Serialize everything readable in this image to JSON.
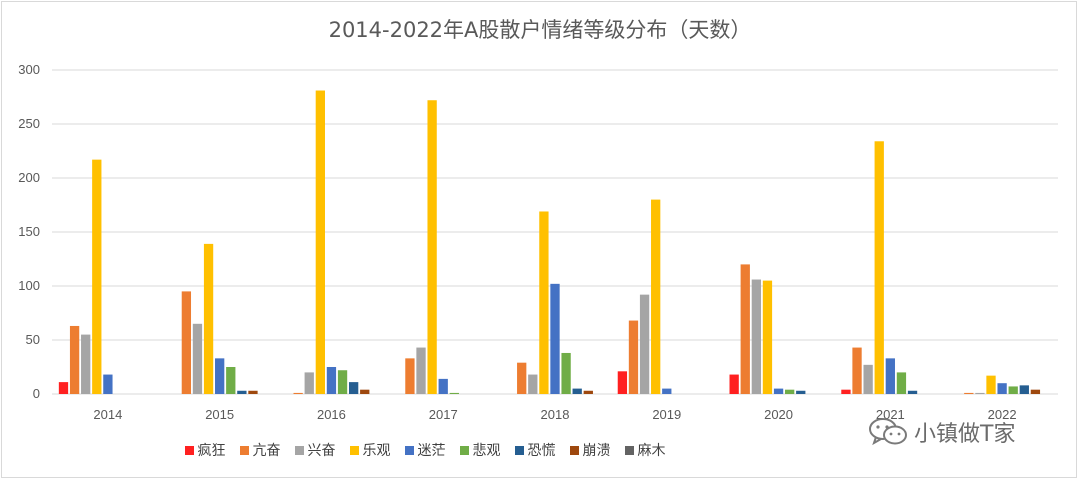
{
  "chart_data": {
    "type": "bar",
    "title": "2014-2022年A股散户情绪等级分布（天数）",
    "categories": [
      "2014",
      "2015",
      "2016",
      "2017",
      "2018",
      "2019",
      "2020",
      "2021",
      "2022"
    ],
    "ylim": [
      0,
      300
    ],
    "yticks": [
      "0",
      "50",
      "100",
      "150",
      "200",
      "250",
      "300"
    ],
    "grid": true,
    "legend_position": "bottom",
    "series": [
      {
        "name": "疯狂",
        "color": "#ff2020",
        "values": [
          11,
          0,
          0,
          0,
          0,
          21,
          18,
          4,
          0
        ]
      },
      {
        "name": "亢奋",
        "color": "#ed7d31",
        "values": [
          63,
          95,
          1,
          33,
          29,
          68,
          120,
          43,
          1
        ]
      },
      {
        "name": "兴奋",
        "color": "#a5a5a5",
        "values": [
          55,
          65,
          20,
          43,
          18,
          92,
          106,
          27,
          1
        ]
      },
      {
        "name": "乐观",
        "color": "#ffc000",
        "values": [
          217,
          139,
          281,
          272,
          169,
          180,
          105,
          234,
          17
        ]
      },
      {
        "name": "迷茫",
        "color": "#4472c4",
        "values": [
          18,
          33,
          25,
          14,
          102,
          5,
          5,
          33,
          10
        ]
      },
      {
        "name": "悲观",
        "color": "#70ad47",
        "values": [
          0,
          25,
          22,
          1,
          38,
          0,
          4,
          20,
          7
        ]
      },
      {
        "name": "恐慌",
        "color": "#255e91",
        "values": [
          0,
          3,
          11,
          0,
          5,
          0,
          3,
          3,
          8
        ]
      },
      {
        "name": "崩溃",
        "color": "#9e480e",
        "values": [
          0,
          3,
          4,
          0,
          3,
          0,
          0,
          0,
          4
        ]
      },
      {
        "name": "麻木",
        "color": "#636363",
        "values": [
          0,
          0,
          0,
          0,
          0,
          0,
          0,
          0,
          0
        ]
      }
    ]
  },
  "watermark": {
    "text": "小镇做T家",
    "icon": "wechat-icon"
  }
}
